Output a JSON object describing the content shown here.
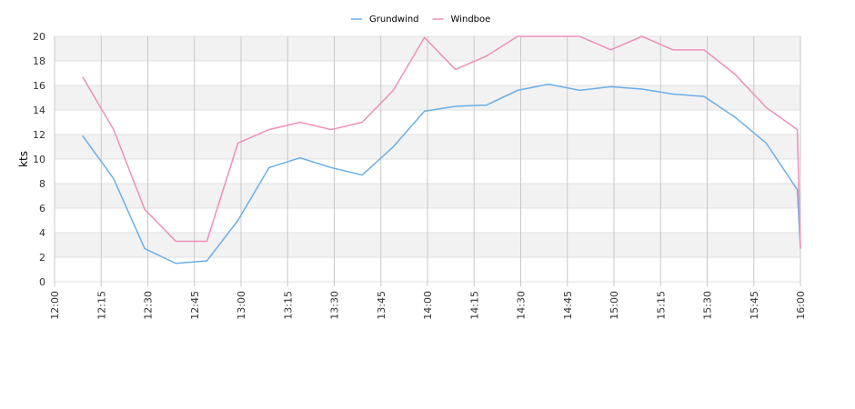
{
  "chart_data": {
    "type": "line",
    "y_label": "kts",
    "x": [
      "12:09",
      "12:19",
      "12:29",
      "12:39",
      "12:49",
      "12:59",
      "13:09",
      "13:19",
      "13:29",
      "13:39",
      "13:49",
      "13:59",
      "14:09",
      "14:19",
      "14:29",
      "14:39",
      "14:49",
      "14:59",
      "15:09",
      "15:19",
      "15:29",
      "15:39",
      "15:49",
      "15:59",
      "16:00"
    ],
    "series": [
      {
        "name": "Grundwind",
        "color": "#6aaee8",
        "values": [
          11.9,
          8.4,
          2.7,
          1.5,
          1.7,
          5.0,
          9.3,
          10.1,
          9.3,
          8.7,
          11.0,
          13.9,
          14.3,
          14.4,
          15.6,
          16.1,
          15.6,
          15.9,
          15.7,
          15.3,
          15.1,
          13.4,
          11.3,
          7.5,
          2.7
        ]
      },
      {
        "name": "Windboe",
        "color": "#ee8fbb",
        "values": [
          16.7,
          12.4,
          5.9,
          3.3,
          3.3,
          11.3,
          12.4,
          13.0,
          12.4,
          13.0,
          15.6,
          19.9,
          17.3,
          18.4,
          20,
          20,
          20,
          18.9,
          20,
          18.9,
          18.9,
          16.9,
          14.2,
          12.4,
          2.7
        ]
      }
    ],
    "xlim": [
      "12:00",
      "16:00"
    ],
    "xticks": [
      "12:00",
      "12:15",
      "12:30",
      "12:45",
      "13:00",
      "13:15",
      "13:30",
      "13:45",
      "14:00",
      "14:15",
      "14:30",
      "14:45",
      "15:00",
      "15:15",
      "15:30",
      "15:45",
      "16:00"
    ],
    "ylim": [
      0,
      20
    ],
    "yticks": [
      0,
      2,
      4,
      6,
      8,
      10,
      12,
      14,
      16,
      18,
      20
    ],
    "grid": true,
    "legend": "top"
  }
}
